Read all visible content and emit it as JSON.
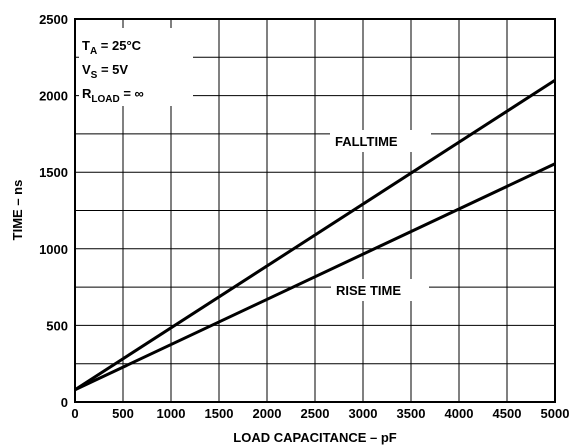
{
  "chart_data": {
    "type": "line",
    "xlabel": "LOAD CAPACITANCE – pF",
    "ylabel": "TIME – ns",
    "xlim": [
      0,
      5000
    ],
    "ylim": [
      0,
      2500
    ],
    "x_ticks": [
      0,
      500,
      1000,
      1500,
      2000,
      2500,
      3000,
      3500,
      4000,
      4500,
      5000
    ],
    "y_ticks": [
      0,
      500,
      1000,
      1500,
      2000,
      2500
    ],
    "grid": true,
    "series": [
      {
        "name": "FALLTIME",
        "x": [
          0,
          5000
        ],
        "y": [
          80,
          2100
        ]
      },
      {
        "name": "RISE TIME",
        "x": [
          0,
          5000
        ],
        "y": [
          80,
          1555
        ]
      }
    ],
    "annotations": {
      "ta_main": "T",
      "ta_sub": "A",
      "ta_value": " = 25°C",
      "vs_main": "V",
      "vs_sub": "S",
      "vs_value": " = 5V",
      "rload_main": "R",
      "rload_sub": "LOAD",
      "rload_value": " = ∞"
    }
  }
}
